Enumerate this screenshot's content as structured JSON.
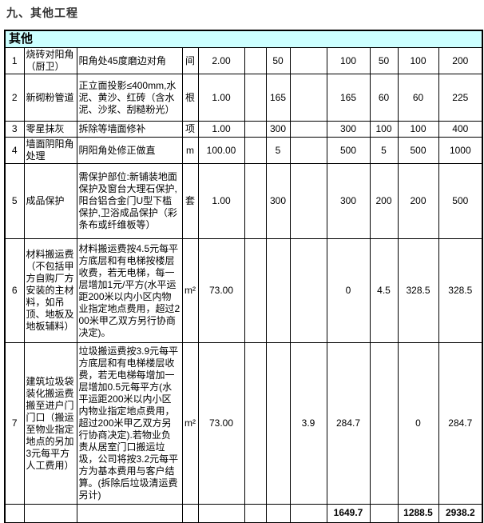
{
  "page_title": "九、其他工程",
  "colors": {
    "section_header_bg": "#ccffff",
    "border": "#000000",
    "title_color": "#333333"
  },
  "table": {
    "section_header": "其他",
    "rows": [
      {
        "no": "1",
        "item": "烧砖对阳角（厨卫）",
        "desc": "阳角处45度磨边对角",
        "unit": "间",
        "qty": "2.00",
        "c6": "",
        "c7": "50",
        "c8": "",
        "c9": "100",
        "c10": "50",
        "c11": "100",
        "c12": "200"
      },
      {
        "no": "2",
        "item": "新砌粉管道",
        "desc": "正立面投影≤400mm,水泥、黄沙、红砖（含水泥、沙浆、刮糙粉光）",
        "unit": "根",
        "qty": "1.00",
        "c6": "",
        "c7": "165",
        "c8": "",
        "c9": "165",
        "c10": "60",
        "c11": "60",
        "c12": "225"
      },
      {
        "no": "3",
        "item": "零星抹灰",
        "desc": "拆除等墙面修补",
        "unit": "项",
        "qty": "1.00",
        "c6": "",
        "c7": "300",
        "c8": "",
        "c9": "300",
        "c10": "100",
        "c11": "100",
        "c12": "400"
      },
      {
        "no": "4",
        "item": "墙面阴阳角处理",
        "desc": "阴阳角处修正做直",
        "unit": "m",
        "qty": "100.00",
        "c6": "",
        "c7": "5",
        "c8": "",
        "c9": "500",
        "c10": "5",
        "c11": "500",
        "c12": "1000"
      },
      {
        "no": "5",
        "item": "成品保护",
        "desc": "需保护部位:新铺装地面保护及窗台大理石保护,阳台铝合金门U型下槛保护,卫浴成品保护（彩条布或纤维板等）",
        "unit": "套",
        "qty": "1.00",
        "c6": "",
        "c7": "300",
        "c8": "",
        "c9": "300",
        "c10": "200",
        "c11": "200",
        "c12": "500"
      },
      {
        "no": "6",
        "item": "材料搬运费（不包括甲方自购厂方安装的主材料，如吊顶、地板及地板辅料）",
        "desc": "材料搬运费按4.5元每平方底层和有电梯按楼层收费，若无电梯，每一层增加1元/平方(水平运距200米以内小区内物业指定地点费用，超过200米甲乙双方另行协商决定)。",
        "unit": "m²",
        "qty": "73.00",
        "c6": "",
        "c7": "",
        "c8": "",
        "c9": "0",
        "c10": "4.5",
        "c11": "328.5",
        "c12": "328.5"
      },
      {
        "no": "7",
        "item": "建筑垃圾袋装化搬运费搬至进户门门口（搬运至物业指定地点的另加3元每平方人工费用）",
        "desc": "垃圾搬运费按3.9元每平方底层和有电梯楼层收费，若无电梯每增加一层增加0.5元每平方(水平运距200米以内小区内物业指定地点费用，超过200米甲乙双方另行协商决定).若物业负责从居室门口搬运垃圾，公司将按3.2元每平方为基本费用与客户结算。(拆除后垃圾清运费另计)",
        "unit": "m²",
        "qty": "73.00",
        "c6": "",
        "c7": "",
        "c8": "3.9",
        "c9": "284.7",
        "c10": "",
        "c11": "0",
        "c12": "284.7"
      }
    ],
    "totals": {
      "no": "",
      "item": "",
      "desc": "",
      "unit": "",
      "qty": "",
      "c6": "",
      "c7": "",
      "c8": "",
      "c9": "1649.7",
      "c10": "",
      "c11": "1288.5",
      "c12": "2938.2"
    }
  }
}
